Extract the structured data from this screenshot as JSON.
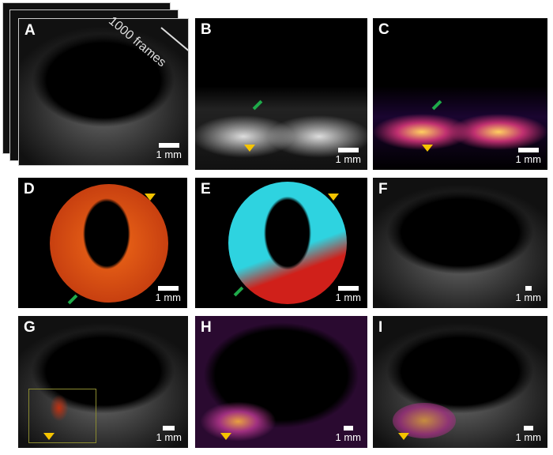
{
  "panels": [
    {
      "label": "A",
      "scale": "1 mm",
      "annotation": "1000 frames"
    },
    {
      "label": "B",
      "scale": "1 mm"
    },
    {
      "label": "C",
      "scale": "1 mm"
    },
    {
      "label": "D",
      "scale": "1 mm"
    },
    {
      "label": "E",
      "scale": "1 mm"
    },
    {
      "label": "F",
      "scale": "1 mm"
    },
    {
      "label": "G",
      "scale": "1 mm"
    },
    {
      "label": "H",
      "scale": "1 mm"
    },
    {
      "label": "I",
      "scale": "1 mm"
    }
  ],
  "colors": {
    "arrow_green": "#1faa4a",
    "arrowhead_yellow": "#f5c400",
    "vessel_red": "#d0201a",
    "iris_cyan": "#2ed3e0",
    "iris_orange": "#e05a10"
  }
}
